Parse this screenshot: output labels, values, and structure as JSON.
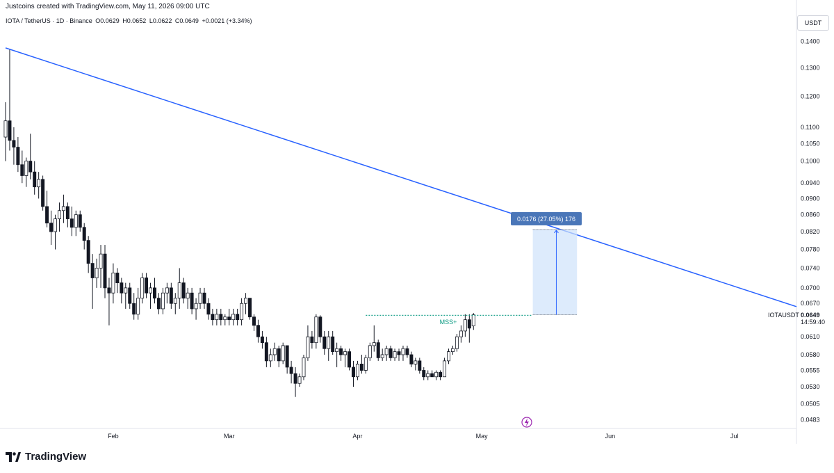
{
  "header": {
    "created_by": "Justcoins created with TradingView.com, May 11, 2026 09:00 UTC"
  },
  "symbol_info": {
    "pair": "IOTA / TetherUS · 1D · Binance",
    "open": "O0.0629",
    "high": "H0.0652",
    "low": "L0.0622",
    "close": "C0.0649",
    "change": "+0.0021 (+3.34%)"
  },
  "currency": "USDT",
  "price_label": {
    "symbol": "IOTAUSDT",
    "price": "0.0649",
    "countdown": "14:59:40"
  },
  "measure_label": "0.0176 (27.05%) 176",
  "mss_label": "MSS+",
  "footer": {
    "logo_text": "TradingView"
  },
  "colors": {
    "up": "#089981",
    "down": "#131722",
    "trendline": "#2962ff",
    "measure_fill": "#cfe2fb",
    "measure_label_bg": "#4a76b8",
    "mss": "#089981"
  },
  "chart_data": {
    "type": "candlestick",
    "y_scale": "log",
    "ylim": [
      0.0475,
      0.1455
    ],
    "y_ticks": [
      "0.1400",
      "0.1300",
      "0.1200",
      "0.1100",
      "0.1050",
      "0.1000",
      "0.0940",
      "0.0900",
      "0.0860",
      "0.0820",
      "0.0780",
      "0.0740",
      "0.0700",
      "0.0670",
      "0.0610",
      "0.0580",
      "0.0555",
      "0.0530",
      "0.0505",
      "0.0483"
    ],
    "x_ticks": [
      "Feb",
      "Mar",
      "Apr",
      "May",
      "Jun",
      "Jul"
    ],
    "x_range": [
      "2026-01-06",
      "2026-07-16"
    ],
    "candles": [
      {
        "o": 0.107,
        "h": 0.118,
        "l": 0.1,
        "c": 0.112
      },
      {
        "o": 0.112,
        "h": 0.137,
        "l": 0.103,
        "c": 0.106
      },
      {
        "o": 0.106,
        "h": 0.11,
        "l": 0.099,
        "c": 0.104
      },
      {
        "o": 0.104,
        "h": 0.107,
        "l": 0.097,
        "c": 0.099
      },
      {
        "o": 0.099,
        "h": 0.103,
        "l": 0.094,
        "c": 0.096
      },
      {
        "o": 0.096,
        "h": 0.101,
        "l": 0.093,
        "c": 0.1
      },
      {
        "o": 0.1,
        "h": 0.108,
        "l": 0.095,
        "c": 0.097
      },
      {
        "o": 0.097,
        "h": 0.1,
        "l": 0.091,
        "c": 0.093
      },
      {
        "o": 0.093,
        "h": 0.097,
        "l": 0.09,
        "c": 0.095
      },
      {
        "o": 0.095,
        "h": 0.096,
        "l": 0.087,
        "c": 0.088
      },
      {
        "o": 0.088,
        "h": 0.092,
        "l": 0.083,
        "c": 0.084
      },
      {
        "o": 0.084,
        "h": 0.087,
        "l": 0.079,
        "c": 0.082
      },
      {
        "o": 0.082,
        "h": 0.086,
        "l": 0.078,
        "c": 0.085
      },
      {
        "o": 0.085,
        "h": 0.089,
        "l": 0.082,
        "c": 0.087
      },
      {
        "o": 0.087,
        "h": 0.091,
        "l": 0.084,
        "c": 0.088
      },
      {
        "o": 0.088,
        "h": 0.089,
        "l": 0.083,
        "c": 0.085
      },
      {
        "o": 0.085,
        "h": 0.088,
        "l": 0.081,
        "c": 0.083
      },
      {
        "o": 0.083,
        "h": 0.087,
        "l": 0.081,
        "c": 0.086
      },
      {
        "o": 0.086,
        "h": 0.087,
        "l": 0.082,
        "c": 0.083
      },
      {
        "o": 0.083,
        "h": 0.084,
        "l": 0.078,
        "c": 0.08
      },
      {
        "o": 0.08,
        "h": 0.081,
        "l": 0.073,
        "c": 0.075
      },
      {
        "o": 0.075,
        "h": 0.077,
        "l": 0.066,
        "c": 0.072
      },
      {
        "o": 0.072,
        "h": 0.076,
        "l": 0.07,
        "c": 0.074
      },
      {
        "o": 0.074,
        "h": 0.079,
        "l": 0.07,
        "c": 0.077
      },
      {
        "o": 0.077,
        "h": 0.079,
        "l": 0.068,
        "c": 0.07
      },
      {
        "o": 0.07,
        "h": 0.072,
        "l": 0.063,
        "c": 0.069
      },
      {
        "o": 0.069,
        "h": 0.075,
        "l": 0.067,
        "c": 0.073
      },
      {
        "o": 0.073,
        "h": 0.074,
        "l": 0.069,
        "c": 0.071
      },
      {
        "o": 0.071,
        "h": 0.072,
        "l": 0.067,
        "c": 0.069
      },
      {
        "o": 0.069,
        "h": 0.071,
        "l": 0.066,
        "c": 0.07
      },
      {
        "o": 0.07,
        "h": 0.071,
        "l": 0.066,
        "c": 0.067
      },
      {
        "o": 0.067,
        "h": 0.069,
        "l": 0.064,
        "c": 0.065
      },
      {
        "o": 0.065,
        "h": 0.07,
        "l": 0.064,
        "c": 0.068
      },
      {
        "o": 0.068,
        "h": 0.073,
        "l": 0.067,
        "c": 0.072
      },
      {
        "o": 0.072,
        "h": 0.073,
        "l": 0.068,
        "c": 0.069
      },
      {
        "o": 0.069,
        "h": 0.071,
        "l": 0.066,
        "c": 0.07
      },
      {
        "o": 0.07,
        "h": 0.072,
        "l": 0.067,
        "c": 0.068
      },
      {
        "o": 0.068,
        "h": 0.069,
        "l": 0.065,
        "c": 0.066
      },
      {
        "o": 0.066,
        "h": 0.07,
        "l": 0.065,
        "c": 0.069
      },
      {
        "o": 0.069,
        "h": 0.071,
        "l": 0.067,
        "c": 0.07
      },
      {
        "o": 0.07,
        "h": 0.071,
        "l": 0.066,
        "c": 0.067
      },
      {
        "o": 0.067,
        "h": 0.069,
        "l": 0.065,
        "c": 0.068
      },
      {
        "o": 0.068,
        "h": 0.074,
        "l": 0.066,
        "c": 0.071
      },
      {
        "o": 0.071,
        "h": 0.072,
        "l": 0.067,
        "c": 0.068
      },
      {
        "o": 0.068,
        "h": 0.07,
        "l": 0.066,
        "c": 0.069
      },
      {
        "o": 0.069,
        "h": 0.07,
        "l": 0.065,
        "c": 0.066
      },
      {
        "o": 0.066,
        "h": 0.068,
        "l": 0.064,
        "c": 0.067
      },
      {
        "o": 0.067,
        "h": 0.07,
        "l": 0.066,
        "c": 0.069
      },
      {
        "o": 0.069,
        "h": 0.07,
        "l": 0.066,
        "c": 0.067
      },
      {
        "o": 0.067,
        "h": 0.068,
        "l": 0.064,
        "c": 0.065
      },
      {
        "o": 0.065,
        "h": 0.066,
        "l": 0.063,
        "c": 0.064
      },
      {
        "o": 0.064,
        "h": 0.066,
        "l": 0.063,
        "c": 0.065
      },
      {
        "o": 0.065,
        "h": 0.066,
        "l": 0.063,
        "c": 0.064
      },
      {
        "o": 0.064,
        "h": 0.065,
        "l": 0.063,
        "c": 0.0645
      },
      {
        "o": 0.0645,
        "h": 0.066,
        "l": 0.063,
        "c": 0.064
      },
      {
        "o": 0.064,
        "h": 0.066,
        "l": 0.063,
        "c": 0.065
      },
      {
        "o": 0.065,
        "h": 0.066,
        "l": 0.063,
        "c": 0.064
      },
      {
        "o": 0.064,
        "h": 0.068,
        "l": 0.063,
        "c": 0.067
      },
      {
        "o": 0.067,
        "h": 0.069,
        "l": 0.065,
        "c": 0.068
      },
      {
        "o": 0.068,
        "h": 0.068,
        "l": 0.064,
        "c": 0.0645
      },
      {
        "o": 0.0645,
        "h": 0.065,
        "l": 0.062,
        "c": 0.063
      },
      {
        "o": 0.063,
        "h": 0.064,
        "l": 0.06,
        "c": 0.061
      },
      {
        "o": 0.061,
        "h": 0.062,
        "l": 0.059,
        "c": 0.06
      },
      {
        "o": 0.06,
        "h": 0.061,
        "l": 0.056,
        "c": 0.057
      },
      {
        "o": 0.057,
        "h": 0.059,
        "l": 0.056,
        "c": 0.058
      },
      {
        "o": 0.058,
        "h": 0.06,
        "l": 0.057,
        "c": 0.059
      },
      {
        "o": 0.059,
        "h": 0.0595,
        "l": 0.056,
        "c": 0.057
      },
      {
        "o": 0.057,
        "h": 0.06,
        "l": 0.0565,
        "c": 0.0595
      },
      {
        "o": 0.0595,
        "h": 0.0595,
        "l": 0.055,
        "c": 0.056
      },
      {
        "o": 0.056,
        "h": 0.057,
        "l": 0.0535,
        "c": 0.055
      },
      {
        "o": 0.055,
        "h": 0.056,
        "l": 0.0515,
        "c": 0.0535
      },
      {
        "o": 0.0535,
        "h": 0.055,
        "l": 0.053,
        "c": 0.0545
      },
      {
        "o": 0.0545,
        "h": 0.058,
        "l": 0.054,
        "c": 0.0575
      },
      {
        "o": 0.0575,
        "h": 0.063,
        "l": 0.057,
        "c": 0.061
      },
      {
        "o": 0.061,
        "h": 0.062,
        "l": 0.059,
        "c": 0.06
      },
      {
        "o": 0.06,
        "h": 0.065,
        "l": 0.059,
        "c": 0.0645
      },
      {
        "o": 0.0645,
        "h": 0.0648,
        "l": 0.06,
        "c": 0.061
      },
      {
        "o": 0.061,
        "h": 0.062,
        "l": 0.058,
        "c": 0.059
      },
      {
        "o": 0.059,
        "h": 0.062,
        "l": 0.057,
        "c": 0.061
      },
      {
        "o": 0.061,
        "h": 0.062,
        "l": 0.058,
        "c": 0.0585
      },
      {
        "o": 0.0585,
        "h": 0.06,
        "l": 0.056,
        "c": 0.059
      },
      {
        "o": 0.059,
        "h": 0.0595,
        "l": 0.057,
        "c": 0.058
      },
      {
        "o": 0.058,
        "h": 0.059,
        "l": 0.056,
        "c": 0.0585
      },
      {
        "o": 0.0585,
        "h": 0.059,
        "l": 0.0555,
        "c": 0.056
      },
      {
        "o": 0.056,
        "h": 0.057,
        "l": 0.053,
        "c": 0.0545
      },
      {
        "o": 0.0545,
        "h": 0.057,
        "l": 0.054,
        "c": 0.0565
      },
      {
        "o": 0.0565,
        "h": 0.058,
        "l": 0.055,
        "c": 0.0555
      },
      {
        "o": 0.0555,
        "h": 0.058,
        "l": 0.055,
        "c": 0.0575
      },
      {
        "o": 0.0575,
        "h": 0.06,
        "l": 0.057,
        "c": 0.0595
      },
      {
        "o": 0.0595,
        "h": 0.063,
        "l": 0.0585,
        "c": 0.06
      },
      {
        "o": 0.06,
        "h": 0.0605,
        "l": 0.057,
        "c": 0.0575
      },
      {
        "o": 0.0575,
        "h": 0.059,
        "l": 0.057,
        "c": 0.058
      },
      {
        "o": 0.058,
        "h": 0.0595,
        "l": 0.057,
        "c": 0.059
      },
      {
        "o": 0.059,
        "h": 0.0595,
        "l": 0.057,
        "c": 0.0575
      },
      {
        "o": 0.0575,
        "h": 0.059,
        "l": 0.057,
        "c": 0.0585
      },
      {
        "o": 0.0585,
        "h": 0.059,
        "l": 0.057,
        "c": 0.058
      },
      {
        "o": 0.058,
        "h": 0.0595,
        "l": 0.057,
        "c": 0.059
      },
      {
        "o": 0.059,
        "h": 0.0595,
        "l": 0.0575,
        "c": 0.058
      },
      {
        "o": 0.058,
        "h": 0.0585,
        "l": 0.056,
        "c": 0.0565
      },
      {
        "o": 0.0565,
        "h": 0.0575,
        "l": 0.0555,
        "c": 0.057
      },
      {
        "o": 0.057,
        "h": 0.0575,
        "l": 0.055,
        "c": 0.0555
      },
      {
        "o": 0.0555,
        "h": 0.056,
        "l": 0.054,
        "c": 0.0545
      },
      {
        "o": 0.0545,
        "h": 0.0555,
        "l": 0.054,
        "c": 0.055
      },
      {
        "o": 0.055,
        "h": 0.0555,
        "l": 0.0545,
        "c": 0.0545
      },
      {
        "o": 0.0545,
        "h": 0.0555,
        "l": 0.054,
        "c": 0.0552
      },
      {
        "o": 0.0552,
        "h": 0.0555,
        "l": 0.054,
        "c": 0.0545
      },
      {
        "o": 0.0545,
        "h": 0.0575,
        "l": 0.0545,
        "c": 0.057
      },
      {
        "o": 0.057,
        "h": 0.059,
        "l": 0.0565,
        "c": 0.0585
      },
      {
        "o": 0.0585,
        "h": 0.0595,
        "l": 0.058,
        "c": 0.059
      },
      {
        "o": 0.059,
        "h": 0.0615,
        "l": 0.0585,
        "c": 0.061
      },
      {
        "o": 0.061,
        "h": 0.063,
        "l": 0.06,
        "c": 0.062
      },
      {
        "o": 0.062,
        "h": 0.065,
        "l": 0.061,
        "c": 0.064
      },
      {
        "o": 0.064,
        "h": 0.065,
        "l": 0.06,
        "c": 0.0625
      },
      {
        "o": 0.0629,
        "h": 0.0652,
        "l": 0.0622,
        "c": 0.0649
      }
    ],
    "trendline": {
      "start": {
        "date": "2026-01-06",
        "price": 0.1375
      },
      "end": {
        "date": "2026-07-16",
        "price": 0.0664
      }
    },
    "mss_level": 0.0648,
    "measure": {
      "from": 0.0649,
      "to": 0.0825,
      "change": "0.0176 (27.05%) 176"
    },
    "last_price": 0.0649
  }
}
